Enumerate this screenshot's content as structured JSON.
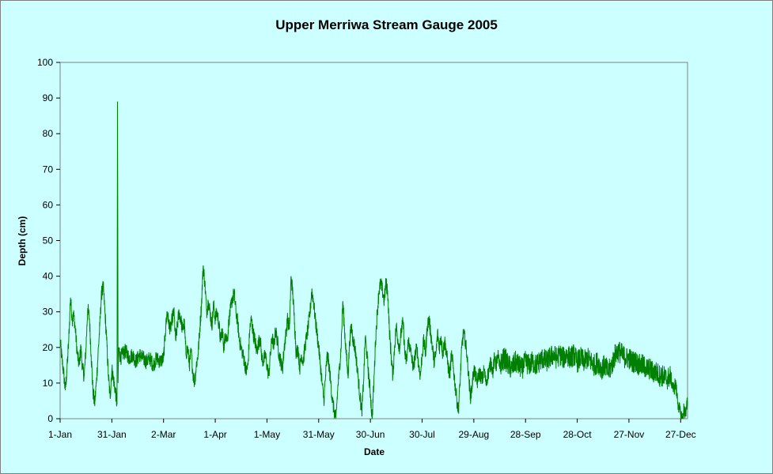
{
  "chart_data": {
    "type": "line",
    "title": "Upper Merriwa Stream Gauge 2005",
    "xlabel": "Date",
    "ylabel": "Depth (cm)",
    "ylim": [
      0,
      100
    ],
    "yticks": [
      0,
      10,
      20,
      30,
      40,
      50,
      60,
      70,
      80,
      90,
      100
    ],
    "x_tick_labels": [
      "1-Jan",
      "31-Jan",
      "2-Mar",
      "1-Apr",
      "1-May",
      "31-May",
      "30-Jun",
      "30-Jul",
      "29-Aug",
      "28-Sep",
      "28-Oct",
      "27-Nov",
      "27-Dec"
    ],
    "x_range_days": [
      0,
      364
    ],
    "grid": false,
    "legend": "none",
    "series": [
      {
        "color": "#008000",
        "x_unit": "day of year 2005 (0 = 1-Jan)",
        "points": [
          [
            0,
            22
          ],
          [
            1,
            17
          ],
          [
            2,
            13
          ],
          [
            3,
            8
          ],
          [
            4,
            14
          ],
          [
            5,
            22
          ],
          [
            6,
            34
          ],
          [
            7,
            28
          ],
          [
            8,
            29
          ],
          [
            9,
            24
          ],
          [
            10,
            18
          ],
          [
            11,
            15
          ],
          [
            12,
            20
          ],
          [
            13,
            14
          ],
          [
            14,
            12
          ],
          [
            15,
            20
          ],
          [
            16,
            31
          ],
          [
            17,
            28
          ],
          [
            18,
            18
          ],
          [
            19,
            8
          ],
          [
            20,
            4
          ],
          [
            21,
            10
          ],
          [
            22,
            18
          ],
          [
            23,
            26
          ],
          [
            24,
            35
          ],
          [
            25,
            37
          ],
          [
            26,
            30
          ],
          [
            27,
            22
          ],
          [
            28,
            12
          ],
          [
            29,
            6
          ],
          [
            30,
            14
          ],
          [
            31,
            11
          ],
          [
            32,
            8
          ],
          [
            33,
            4
          ],
          [
            33.3,
            89
          ],
          [
            33.6,
            10
          ],
          [
            34,
            20
          ],
          [
            35,
            17
          ],
          [
            36,
            18
          ],
          [
            38,
            19
          ],
          [
            40,
            17
          ],
          [
            42,
            18
          ],
          [
            44,
            16
          ],
          [
            46,
            18
          ],
          [
            48,
            17
          ],
          [
            50,
            16
          ],
          [
            52,
            17
          ],
          [
            54,
            15
          ],
          [
            56,
            17
          ],
          [
            58,
            16
          ],
          [
            60,
            17
          ],
          [
            61,
            24
          ],
          [
            62,
            30
          ],
          [
            63,
            27
          ],
          [
            64,
            25
          ],
          [
            65,
            28
          ],
          [
            66,
            30
          ],
          [
            67,
            22
          ],
          [
            68,
            26
          ],
          [
            69,
            30
          ],
          [
            70,
            28
          ],
          [
            71,
            25
          ],
          [
            72,
            27
          ],
          [
            73,
            18
          ],
          [
            74,
            20
          ],
          [
            75,
            15
          ],
          [
            76,
            19
          ],
          [
            77,
            13
          ],
          [
            78,
            10
          ],
          [
            79,
            15
          ],
          [
            80,
            18
          ],
          [
            81,
            25
          ],
          [
            82,
            32
          ],
          [
            83,
            43
          ],
          [
            84,
            38
          ],
          [
            85,
            30
          ],
          [
            86,
            33
          ],
          [
            87,
            30
          ],
          [
            88,
            26
          ],
          [
            89,
            32
          ],
          [
            90,
            28
          ],
          [
            91,
            30
          ],
          [
            92,
            27
          ],
          [
            93,
            22
          ],
          [
            94,
            25
          ],
          [
            95,
            20
          ],
          [
            96,
            24
          ],
          [
            97,
            22
          ],
          [
            98,
            28
          ],
          [
            99,
            31
          ],
          [
            100,
            34
          ],
          [
            101,
            35
          ],
          [
            102,
            30
          ],
          [
            103,
            27
          ],
          [
            104,
            22
          ],
          [
            105,
            20
          ],
          [
            106,
            18
          ],
          [
            107,
            16
          ],
          [
            108,
            13
          ],
          [
            109,
            15
          ],
          [
            110,
            25
          ],
          [
            111,
            28
          ],
          [
            112,
            24
          ],
          [
            113,
            22
          ],
          [
            114,
            19
          ],
          [
            115,
            21
          ],
          [
            116,
            23
          ],
          [
            117,
            17
          ],
          [
            118,
            16
          ],
          [
            119,
            18
          ],
          [
            120,
            15
          ],
          [
            121,
            12
          ],
          [
            122,
            18
          ],
          [
            123,
            23
          ],
          [
            124,
            20
          ],
          [
            125,
            25
          ],
          [
            126,
            22
          ],
          [
            127,
            18
          ],
          [
            128,
            16
          ],
          [
            129,
            14
          ],
          [
            130,
            20
          ],
          [
            131,
            24
          ],
          [
            132,
            28
          ],
          [
            133,
            25
          ],
          [
            134,
            40
          ],
          [
            135,
            35
          ],
          [
            136,
            27
          ],
          [
            137,
            18
          ],
          [
            138,
            20
          ],
          [
            139,
            14
          ],
          [
            140,
            18
          ],
          [
            141,
            16
          ],
          [
            142,
            20
          ],
          [
            143,
            23
          ],
          [
            144,
            26
          ],
          [
            145,
            30
          ],
          [
            146,
            36
          ],
          [
            147,
            33
          ],
          [
            148,
            28
          ],
          [
            149,
            24
          ],
          [
            150,
            20
          ],
          [
            151,
            15
          ],
          [
            152,
            10
          ],
          [
            153,
            5
          ],
          [
            154,
            12
          ],
          [
            155,
            18
          ],
          [
            156,
            15
          ],
          [
            157,
            10
          ],
          [
            158,
            5
          ],
          [
            159,
            2
          ],
          [
            160,
            0
          ],
          [
            161,
            8
          ],
          [
            162,
            14
          ],
          [
            163,
            20
          ],
          [
            164,
            33
          ],
          [
            165,
            25
          ],
          [
            166,
            18
          ],
          [
            167,
            12
          ],
          [
            168,
            22
          ],
          [
            169,
            26
          ],
          [
            170,
            22
          ],
          [
            171,
            20
          ],
          [
            172,
            16
          ],
          [
            173,
            11
          ],
          [
            174,
            6
          ],
          [
            175,
            2
          ],
          [
            176,
            10
          ],
          [
            177,
            23
          ],
          [
            178,
            18
          ],
          [
            179,
            12
          ],
          [
            180,
            7
          ],
          [
            181,
            0
          ],
          [
            182,
            10
          ],
          [
            183,
            22
          ],
          [
            184,
            30
          ],
          [
            185,
            36
          ],
          [
            186,
            38
          ],
          [
            187,
            36
          ],
          [
            188,
            33
          ],
          [
            189,
            38
          ],
          [
            190,
            36
          ],
          [
            191,
            25
          ],
          [
            192,
            18
          ],
          [
            193,
            12
          ],
          [
            194,
            20
          ],
          [
            195,
            26
          ],
          [
            196,
            22
          ],
          [
            197,
            20
          ],
          [
            198,
            25
          ],
          [
            199,
            27
          ],
          [
            200,
            18
          ],
          [
            201,
            16
          ],
          [
            202,
            22
          ],
          [
            203,
            20
          ],
          [
            204,
            17
          ],
          [
            205,
            14
          ],
          [
            206,
            18
          ],
          [
            207,
            20
          ],
          [
            208,
            15
          ],
          [
            209,
            12
          ],
          [
            210,
            18
          ],
          [
            211,
            22
          ],
          [
            212,
            18
          ],
          [
            213,
            26
          ],
          [
            214,
            28
          ],
          [
            215,
            24
          ],
          [
            216,
            20
          ],
          [
            217,
            16
          ],
          [
            218,
            18
          ],
          [
            219,
            24
          ],
          [
            220,
            20
          ],
          [
            221,
            23
          ],
          [
            222,
            18
          ],
          [
            223,
            22
          ],
          [
            224,
            19
          ],
          [
            225,
            15
          ],
          [
            226,
            12
          ],
          [
            227,
            18
          ],
          [
            228,
            15
          ],
          [
            229,
            10
          ],
          [
            230,
            6
          ],
          [
            231,
            2
          ],
          [
            232,
            10
          ],
          [
            233,
            20
          ],
          [
            234,
            24
          ],
          [
            235,
            22
          ],
          [
            236,
            18
          ],
          [
            237,
            12
          ],
          [
            238,
            6
          ],
          [
            239,
            9
          ],
          [
            240,
            14
          ],
          [
            241,
            12
          ],
          [
            242,
            10
          ],
          [
            243,
            13
          ],
          [
            244,
            12
          ],
          [
            245,
            11
          ],
          [
            246,
            14
          ],
          [
            247,
            10
          ],
          [
            248,
            12
          ],
          [
            249,
            14
          ],
          [
            250,
            16
          ],
          [
            251,
            13
          ],
          [
            252,
            17
          ],
          [
            253,
            15
          ],
          [
            254,
            18
          ],
          [
            255,
            14
          ],
          [
            256,
            16
          ],
          [
            258,
            17
          ],
          [
            260,
            15
          ],
          [
            262,
            14
          ],
          [
            264,
            16
          ],
          [
            266,
            15
          ],
          [
            268,
            14
          ],
          [
            270,
            16
          ],
          [
            272,
            15
          ],
          [
            274,
            16
          ],
          [
            276,
            15
          ],
          [
            278,
            16
          ],
          [
            280,
            17
          ],
          [
            282,
            16
          ],
          [
            284,
            17
          ],
          [
            286,
            18
          ],
          [
            288,
            17
          ],
          [
            290,
            18
          ],
          [
            292,
            17
          ],
          [
            294,
            18
          ],
          [
            296,
            17
          ],
          [
            298,
            18
          ],
          [
            300,
            16
          ],
          [
            302,
            17
          ],
          [
            304,
            16
          ],
          [
            306,
            17
          ],
          [
            308,
            16
          ],
          [
            310,
            15
          ],
          [
            312,
            16
          ],
          [
            314,
            14
          ],
          [
            316,
            15
          ],
          [
            318,
            13
          ],
          [
            320,
            15
          ],
          [
            322,
            18
          ],
          [
            324,
            19
          ],
          [
            326,
            18
          ],
          [
            328,
            17
          ],
          [
            330,
            17
          ],
          [
            332,
            16
          ],
          [
            334,
            16
          ],
          [
            336,
            15
          ],
          [
            338,
            15
          ],
          [
            340,
            14
          ],
          [
            342,
            14
          ],
          [
            344,
            13
          ],
          [
            346,
            13
          ],
          [
            348,
            12
          ],
          [
            350,
            12
          ],
          [
            352,
            11
          ],
          [
            354,
            12
          ],
          [
            355,
            10
          ],
          [
            356,
            8
          ],
          [
            357,
            10
          ],
          [
            358,
            6
          ],
          [
            359,
            3
          ],
          [
            360,
            1
          ],
          [
            361,
            0
          ],
          [
            362,
            3
          ],
          [
            363,
            1
          ],
          [
            364,
            5
          ]
        ]
      }
    ]
  }
}
